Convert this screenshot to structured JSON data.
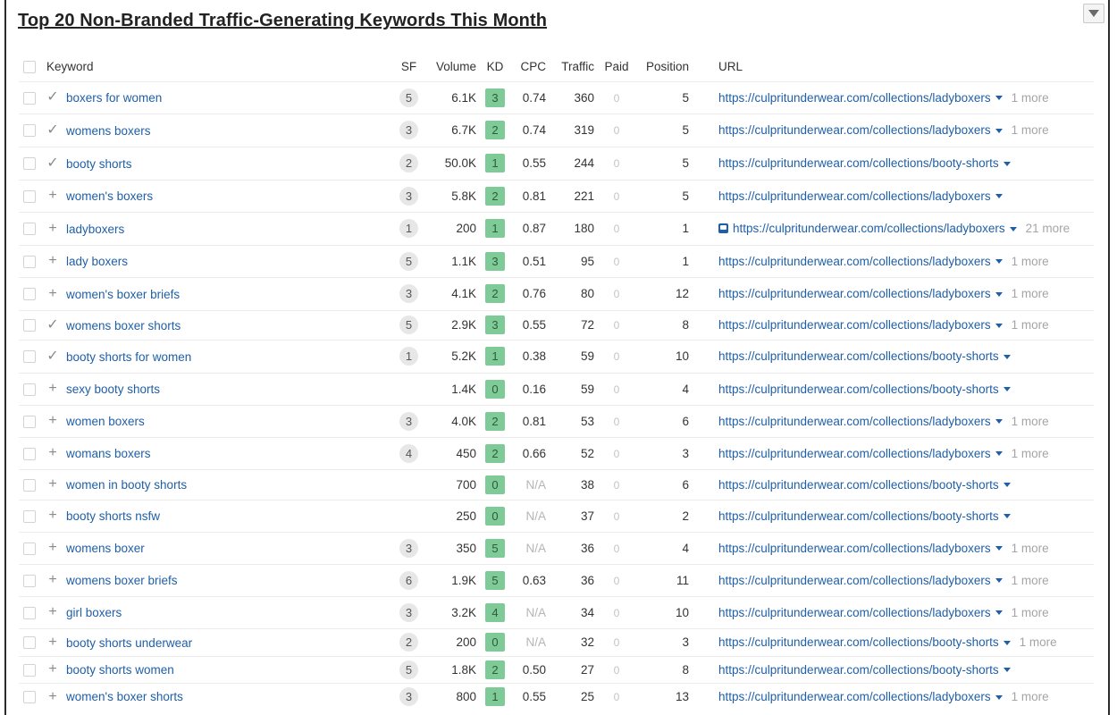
{
  "title": "Top 20 Non-Branded Traffic-Generating Keywords This Month",
  "columns": {
    "keyword": "Keyword",
    "sf": "SF",
    "volume": "Volume",
    "kd": "KD",
    "cpc": "CPC",
    "traffic": "Traffic",
    "paid": "Paid",
    "position": "Position",
    "url": "URL"
  },
  "colors": {
    "link": "#1f5fa7",
    "kd_badge": "#7fcb97",
    "muted": "#a5a5a5"
  },
  "rows": [
    {
      "status": "check",
      "keyword": "boxers for women",
      "sf": "5",
      "volume": "6.1K",
      "kd": "3",
      "cpc": "0.74",
      "traffic": "360",
      "paid": "0",
      "position": "5",
      "url": "https://culpritunderwear.com/collections/ladyboxers",
      "more": "1 more",
      "serp": false
    },
    {
      "status": "check",
      "keyword": "womens boxers",
      "sf": "3",
      "volume": "6.7K",
      "kd": "2",
      "cpc": "0.74",
      "traffic": "319",
      "paid": "0",
      "position": "5",
      "url": "https://culpritunderwear.com/collections/ladyboxers",
      "more": "1 more",
      "serp": false
    },
    {
      "status": "check",
      "keyword": "booty shorts",
      "sf": "2",
      "volume": "50.0K",
      "kd": "1",
      "cpc": "0.55",
      "traffic": "244",
      "paid": "0",
      "position": "5",
      "url": "https://culpritunderwear.com/collections/booty-shorts",
      "more": "",
      "serp": false
    },
    {
      "status": "plus",
      "keyword": "women's boxers",
      "sf": "3",
      "volume": "5.8K",
      "kd": "2",
      "cpc": "0.81",
      "traffic": "221",
      "paid": "0",
      "position": "5",
      "url": "https://culpritunderwear.com/collections/ladyboxers",
      "more": "",
      "serp": false
    },
    {
      "status": "plus",
      "keyword": "ladyboxers",
      "sf": "1",
      "volume": "200",
      "kd": "1",
      "cpc": "0.87",
      "traffic": "180",
      "paid": "0",
      "position": "1",
      "url": "https://culpritunderwear.com/collections/ladyboxers",
      "more": "21 more",
      "serp": true
    },
    {
      "status": "plus",
      "keyword": "lady boxers",
      "sf": "5",
      "volume": "1.1K",
      "kd": "3",
      "cpc": "0.51",
      "traffic": "95",
      "paid": "0",
      "position": "1",
      "url": "https://culpritunderwear.com/collections/ladyboxers",
      "more": "1 more",
      "serp": false
    },
    {
      "status": "plus",
      "keyword": "women's boxer briefs",
      "sf": "3",
      "volume": "4.1K",
      "kd": "2",
      "cpc": "0.76",
      "traffic": "80",
      "paid": "0",
      "position": "12",
      "url": "https://culpritunderwear.com/collections/ladyboxers",
      "more": "1 more",
      "serp": false
    },
    {
      "status": "check",
      "keyword": "womens boxer shorts",
      "sf": "5",
      "volume": "2.9K",
      "kd": "3",
      "cpc": "0.55",
      "traffic": "72",
      "paid": "0",
      "position": "8",
      "url": "https://culpritunderwear.com/collections/ladyboxers",
      "more": "1 more",
      "serp": false
    },
    {
      "status": "check",
      "keyword": "booty shorts for women",
      "sf": "1",
      "volume": "5.2K",
      "kd": "1",
      "cpc": "0.38",
      "traffic": "59",
      "paid": "0",
      "position": "10",
      "url": "https://culpritunderwear.com/collections/booty-shorts",
      "more": "",
      "serp": false
    },
    {
      "status": "plus",
      "keyword": "sexy booty shorts",
      "sf": "",
      "volume": "1.4K",
      "kd": "0",
      "cpc": "0.16",
      "traffic": "59",
      "paid": "0",
      "position": "4",
      "url": "https://culpritunderwear.com/collections/booty-shorts",
      "more": "",
      "serp": false
    },
    {
      "status": "plus",
      "keyword": "women boxers",
      "sf": "3",
      "volume": "4.0K",
      "kd": "2",
      "cpc": "0.81",
      "traffic": "53",
      "paid": "0",
      "position": "6",
      "url": "https://culpritunderwear.com/collections/ladyboxers",
      "more": "1 more",
      "serp": false
    },
    {
      "status": "plus",
      "keyword": "womans boxers",
      "sf": "4",
      "volume": "450",
      "kd": "2",
      "cpc": "0.66",
      "traffic": "52",
      "paid": "0",
      "position": "3",
      "url": "https://culpritunderwear.com/collections/ladyboxers",
      "more": "1 more",
      "serp": false
    },
    {
      "status": "plus",
      "keyword": "women in booty shorts",
      "sf": "",
      "volume": "700",
      "kd": "0",
      "cpc": "N/A",
      "traffic": "38",
      "paid": "0",
      "position": "6",
      "url": "https://culpritunderwear.com/collections/booty-shorts",
      "more": "",
      "serp": false
    },
    {
      "status": "plus",
      "keyword": "booty shorts nsfw",
      "sf": "",
      "volume": "250",
      "kd": "0",
      "cpc": "N/A",
      "traffic": "37",
      "paid": "0",
      "position": "2",
      "url": "https://culpritunderwear.com/collections/booty-shorts",
      "more": "",
      "serp": false
    },
    {
      "status": "plus",
      "keyword": "womens boxer",
      "sf": "3",
      "volume": "350",
      "kd": "5",
      "cpc": "N/A",
      "traffic": "36",
      "paid": "0",
      "position": "4",
      "url": "https://culpritunderwear.com/collections/ladyboxers",
      "more": "1 more",
      "serp": false
    },
    {
      "status": "plus",
      "keyword": "womens boxer briefs",
      "sf": "6",
      "volume": "1.9K",
      "kd": "5",
      "cpc": "0.63",
      "traffic": "36",
      "paid": "0",
      "position": "11",
      "url": "https://culpritunderwear.com/collections/ladyboxers",
      "more": "1 more",
      "serp": false
    },
    {
      "status": "plus",
      "keyword": "girl boxers",
      "sf": "3",
      "volume": "3.2K",
      "kd": "4",
      "cpc": "N/A",
      "traffic": "34",
      "paid": "0",
      "position": "10",
      "url": "https://culpritunderwear.com/collections/ladyboxers",
      "more": "1 more",
      "serp": false
    },
    {
      "status": "plus",
      "keyword": "booty shorts underwear",
      "sf": "2",
      "volume": "200",
      "kd": "0",
      "cpc": "N/A",
      "traffic": "32",
      "paid": "0",
      "position": "3",
      "url": "https://culpritunderwear.com/collections/booty-shorts",
      "more": "1 more",
      "serp": false
    },
    {
      "status": "plus",
      "keyword": "booty shorts women",
      "sf": "5",
      "volume": "1.8K",
      "kd": "2",
      "cpc": "0.50",
      "traffic": "27",
      "paid": "0",
      "position": "8",
      "url": "https://culpritunderwear.com/collections/booty-shorts",
      "more": "",
      "serp": false
    },
    {
      "status": "plus",
      "keyword": "women's boxer shorts",
      "sf": "3",
      "volume": "800",
      "kd": "1",
      "cpc": "0.55",
      "traffic": "25",
      "paid": "0",
      "position": "13",
      "url": "https://culpritunderwear.com/collections/ladyboxers",
      "more": "1 more",
      "serp": false
    }
  ]
}
